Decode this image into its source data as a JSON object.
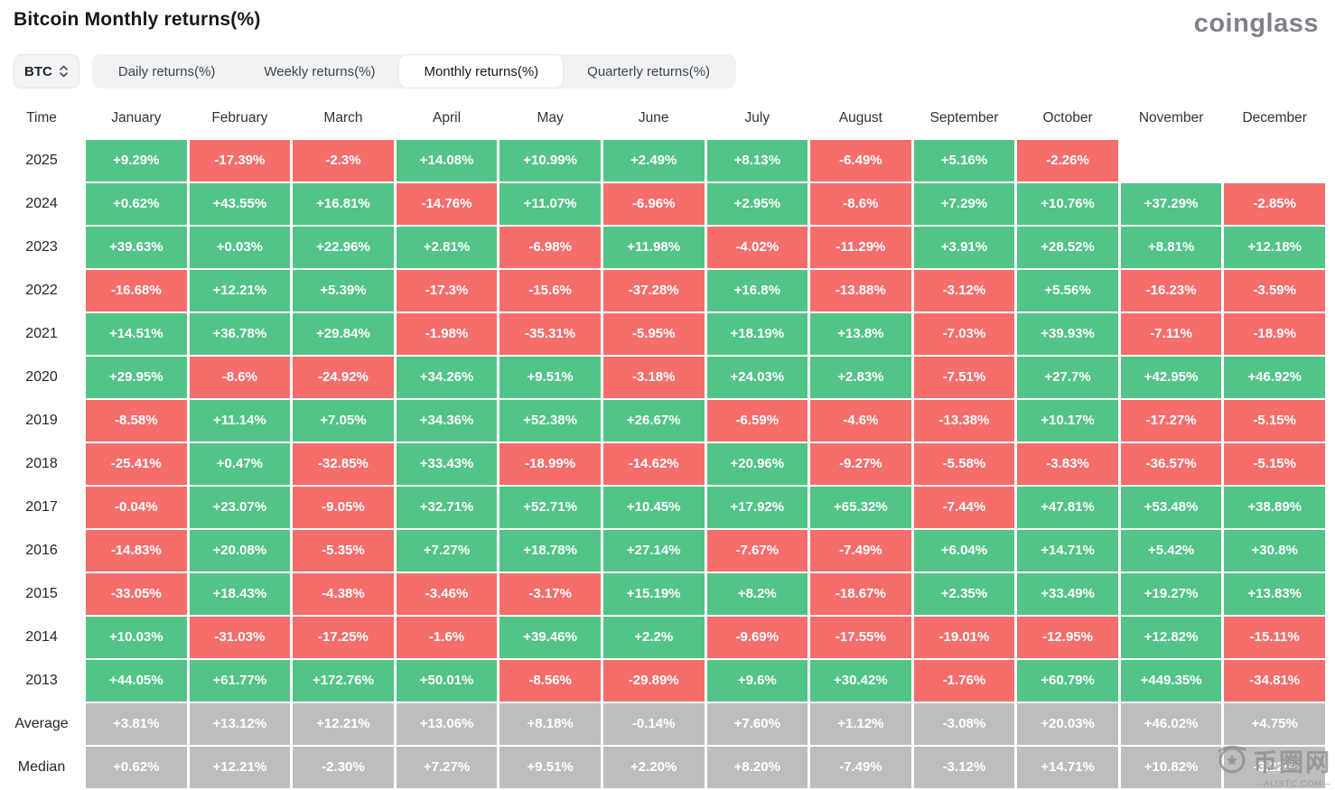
{
  "page": {
    "title": "Bitcoin Monthly returns(%)",
    "logo": "coinglass"
  },
  "controls": {
    "symbol_selector": {
      "value": "BTC"
    },
    "tabs": [
      {
        "label": "Daily returns(%)",
        "active": false
      },
      {
        "label": "Weekly returns(%)",
        "active": false
      },
      {
        "label": "Monthly returns(%)",
        "active": true
      },
      {
        "label": "Quarterly returns(%)",
        "active": false
      }
    ]
  },
  "colors": {
    "positive": "#52c487",
    "negative": "#f56e6c",
    "neutral": "#bdbdbd"
  },
  "table": {
    "time_label": "Time",
    "columns": [
      "January",
      "February",
      "March",
      "April",
      "May",
      "June",
      "July",
      "August",
      "September",
      "October",
      "November",
      "December"
    ],
    "rows": [
      {
        "label": "2025",
        "kind": "year",
        "cells": [
          "+9.29%",
          "-17.39%",
          "-2.3%",
          "+14.08%",
          "+10.99%",
          "+2.49%",
          "+8.13%",
          "-6.49%",
          "+5.16%",
          "-2.26%",
          "",
          ""
        ]
      },
      {
        "label": "2024",
        "kind": "year",
        "cells": [
          "+0.62%",
          "+43.55%",
          "+16.81%",
          "-14.76%",
          "+11.07%",
          "-6.96%",
          "+2.95%",
          "-8.6%",
          "+7.29%",
          "+10.76%",
          "+37.29%",
          "-2.85%"
        ]
      },
      {
        "label": "2023",
        "kind": "year",
        "cells": [
          "+39.63%",
          "+0.03%",
          "+22.96%",
          "+2.81%",
          "-6.98%",
          "+11.98%",
          "-4.02%",
          "-11.29%",
          "+3.91%",
          "+28.52%",
          "+8.81%",
          "+12.18%"
        ]
      },
      {
        "label": "2022",
        "kind": "year",
        "cells": [
          "-16.68%",
          "+12.21%",
          "+5.39%",
          "-17.3%",
          "-15.6%",
          "-37.28%",
          "+16.8%",
          "-13.88%",
          "-3.12%",
          "+5.56%",
          "-16.23%",
          "-3.59%"
        ]
      },
      {
        "label": "2021",
        "kind": "year",
        "cells": [
          "+14.51%",
          "+36.78%",
          "+29.84%",
          "-1.98%",
          "-35.31%",
          "-5.95%",
          "+18.19%",
          "+13.8%",
          "-7.03%",
          "+39.93%",
          "-7.11%",
          "-18.9%"
        ]
      },
      {
        "label": "2020",
        "kind": "year",
        "cells": [
          "+29.95%",
          "-8.6%",
          "-24.92%",
          "+34.26%",
          "+9.51%",
          "-3.18%",
          "+24.03%",
          "+2.83%",
          "-7.51%",
          "+27.7%",
          "+42.95%",
          "+46.92%"
        ]
      },
      {
        "label": "2019",
        "kind": "year",
        "cells": [
          "-8.58%",
          "+11.14%",
          "+7.05%",
          "+34.36%",
          "+52.38%",
          "+26.67%",
          "-6.59%",
          "-4.6%",
          "-13.38%",
          "+10.17%",
          "-17.27%",
          "-5.15%"
        ]
      },
      {
        "label": "2018",
        "kind": "year",
        "cells": [
          "-25.41%",
          "+0.47%",
          "-32.85%",
          "+33.43%",
          "-18.99%",
          "-14.62%",
          "+20.96%",
          "-9.27%",
          "-5.58%",
          "-3.83%",
          "-36.57%",
          "-5.15%"
        ]
      },
      {
        "label": "2017",
        "kind": "year",
        "cells": [
          "-0.04%",
          "+23.07%",
          "-9.05%",
          "+32.71%",
          "+52.71%",
          "+10.45%",
          "+17.92%",
          "+65.32%",
          "-7.44%",
          "+47.81%",
          "+53.48%",
          "+38.89%"
        ]
      },
      {
        "label": "2016",
        "kind": "year",
        "cells": [
          "-14.83%",
          "+20.08%",
          "-5.35%",
          "+7.27%",
          "+18.78%",
          "+27.14%",
          "-7.67%",
          "-7.49%",
          "+6.04%",
          "+14.71%",
          "+5.42%",
          "+30.8%"
        ]
      },
      {
        "label": "2015",
        "kind": "year",
        "cells": [
          "-33.05%",
          "+18.43%",
          "-4.38%",
          "-3.46%",
          "-3.17%",
          "+15.19%",
          "+8.2%",
          "-18.67%",
          "+2.35%",
          "+33.49%",
          "+19.27%",
          "+13.83%"
        ]
      },
      {
        "label": "2014",
        "kind": "year",
        "cells": [
          "+10.03%",
          "-31.03%",
          "-17.25%",
          "-1.6%",
          "+39.46%",
          "+2.2%",
          "-9.69%",
          "-17.55%",
          "-19.01%",
          "-12.95%",
          "+12.82%",
          "-15.11%"
        ]
      },
      {
        "label": "2013",
        "kind": "year",
        "cells": [
          "+44.05%",
          "+61.77%",
          "+172.76%",
          "+50.01%",
          "-8.56%",
          "-29.89%",
          "+9.6%",
          "+30.42%",
          "-1.76%",
          "+60.79%",
          "+449.35%",
          "-34.81%"
        ]
      },
      {
        "label": "Average",
        "kind": "stat",
        "cells": [
          "+3.81%",
          "+13.12%",
          "+12.21%",
          "+13.06%",
          "+8.18%",
          "-0.14%",
          "+7.60%",
          "+1.12%",
          "-3.08%",
          "+20.03%",
          "+46.02%",
          "+4.75%"
        ]
      },
      {
        "label": "Median",
        "kind": "stat",
        "cells": [
          "+0.62%",
          "+12.21%",
          "-2.30%",
          "+7.27%",
          "+9.51%",
          "+2.20%",
          "+8.20%",
          "-7.49%",
          "-3.12%",
          "+14.71%",
          "+10.82%",
          "-3.22%"
        ]
      }
    ]
  },
  "chart_data": {
    "type": "heatmap",
    "title": "Bitcoin Monthly returns(%)",
    "columns": [
      "January",
      "February",
      "March",
      "April",
      "May",
      "June",
      "July",
      "August",
      "September",
      "October",
      "November",
      "December"
    ],
    "rows": [
      "2025",
      "2024",
      "2023",
      "2022",
      "2021",
      "2020",
      "2019",
      "2018",
      "2017",
      "2016",
      "2015",
      "2014",
      "2013",
      "Average",
      "Median"
    ],
    "values": [
      [
        9.29,
        -17.39,
        -2.3,
        14.08,
        10.99,
        2.49,
        8.13,
        -6.49,
        5.16,
        -2.26,
        null,
        null
      ],
      [
        0.62,
        43.55,
        16.81,
        -14.76,
        11.07,
        -6.96,
        2.95,
        -8.6,
        7.29,
        10.76,
        37.29,
        -2.85
      ],
      [
        39.63,
        0.03,
        22.96,
        2.81,
        -6.98,
        11.98,
        -4.02,
        -11.29,
        3.91,
        28.52,
        8.81,
        12.18
      ],
      [
        -16.68,
        12.21,
        5.39,
        -17.3,
        -15.6,
        -37.28,
        16.8,
        -13.88,
        -3.12,
        5.56,
        -16.23,
        -3.59
      ],
      [
        14.51,
        36.78,
        29.84,
        -1.98,
        -35.31,
        -5.95,
        18.19,
        13.8,
        -7.03,
        39.93,
        -7.11,
        -18.9
      ],
      [
        29.95,
        -8.6,
        -24.92,
        34.26,
        9.51,
        -3.18,
        24.03,
        2.83,
        -7.51,
        27.7,
        42.95,
        46.92
      ],
      [
        -8.58,
        11.14,
        7.05,
        34.36,
        52.38,
        26.67,
        -6.59,
        -4.6,
        -13.38,
        10.17,
        -17.27,
        -5.15
      ],
      [
        -25.41,
        0.47,
        -32.85,
        33.43,
        -18.99,
        -14.62,
        20.96,
        -9.27,
        -5.58,
        -3.83,
        -36.57,
        -5.15
      ],
      [
        -0.04,
        23.07,
        -9.05,
        32.71,
        52.71,
        10.45,
        17.92,
        65.32,
        -7.44,
        47.81,
        53.48,
        38.89
      ],
      [
        -14.83,
        20.08,
        -5.35,
        7.27,
        18.78,
        27.14,
        -7.67,
        -7.49,
        6.04,
        14.71,
        5.42,
        30.8
      ],
      [
        -33.05,
        18.43,
        -4.38,
        -3.46,
        -3.17,
        15.19,
        8.2,
        -18.67,
        2.35,
        33.49,
        19.27,
        13.83
      ],
      [
        10.03,
        -31.03,
        -17.25,
        -1.6,
        39.46,
        2.2,
        -9.69,
        -17.55,
        -19.01,
        -12.95,
        12.82,
        -15.11
      ],
      [
        44.05,
        61.77,
        172.76,
        50.01,
        -8.56,
        -29.89,
        9.6,
        30.42,
        -1.76,
        60.79,
        449.35,
        -34.81
      ],
      [
        3.81,
        13.12,
        12.21,
        13.06,
        8.18,
        -0.14,
        7.6,
        1.12,
        -3.08,
        20.03,
        46.02,
        4.75
      ],
      [
        0.62,
        12.21,
        -2.3,
        7.27,
        9.51,
        2.2,
        8.2,
        -7.49,
        -3.12,
        14.71,
        10.82,
        -3.22
      ]
    ],
    "color_rule": "positive=green, negative=red, Average/Median rows=gray",
    "legend_position": "none",
    "grid": false
  },
  "watermark": {
    "text": "币圈网",
    "subtext": "—ALISTC.COM—"
  }
}
